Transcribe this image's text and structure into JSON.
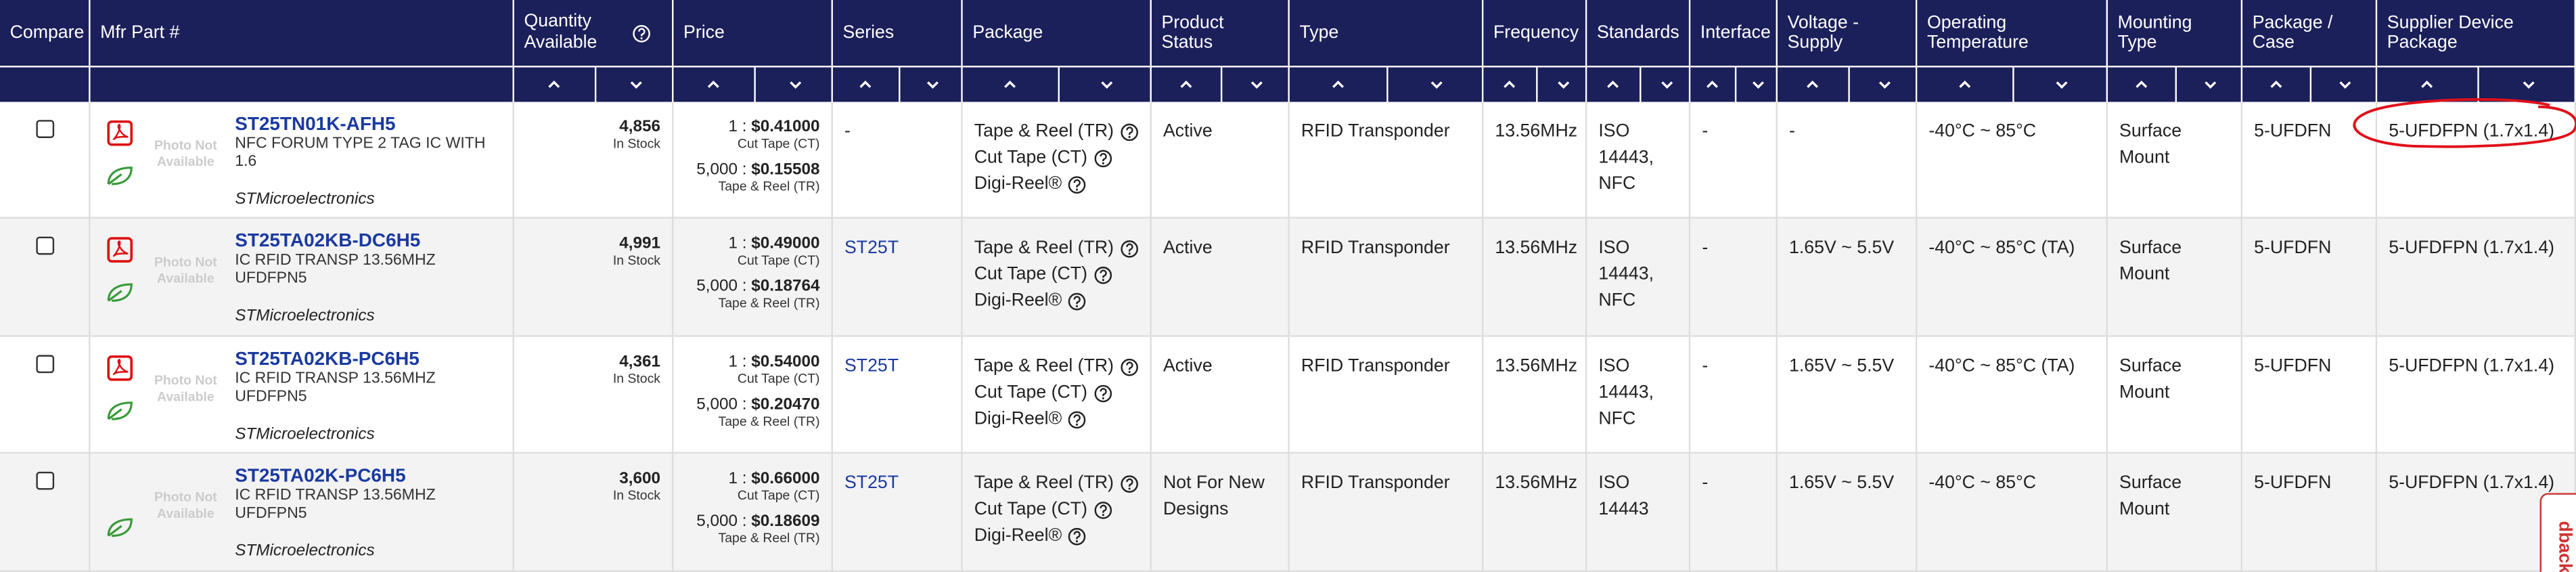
{
  "header": {
    "columns": [
      "Compare",
      "Mfr Part #",
      "Quantity Available",
      "Price",
      "Series",
      "Package",
      "Product Status",
      "Type",
      "Frequency",
      "Standards",
      "Interface",
      "Voltage - Supply",
      "Operating Temperature",
      "Mounting Type",
      "Package / Case",
      "Supplier Device Package"
    ]
  },
  "rows": [
    {
      "datasheet": true,
      "photo": "Photo Not Available",
      "part": "ST25TN01K-AFH5",
      "description": "NFC FORUM TYPE 2 TAG IC WITH 1.6",
      "manufacturer": "STMicroelectronics",
      "quantity": "4,856",
      "stock": "In Stock",
      "prices": [
        {
          "break": "1 :",
          "price": "$0.41000",
          "pack": "Cut Tape (CT)"
        },
        {
          "break": "5,000 :",
          "price": "$0.15508",
          "pack": "Tape & Reel (TR)"
        }
      ],
      "series": "-",
      "package": [
        "Tape & Reel (TR)",
        "Cut Tape (CT)",
        "Digi-Reel®"
      ],
      "status": "Active",
      "type": "RFID Transponder",
      "frequency": "13.56MHz",
      "standards": "ISO 14443, NFC",
      "interface": "-",
      "voltage": "-",
      "temperature": "-40°C ~ 85°C",
      "mounting": "Surface Mount",
      "case": "5-UFDFN",
      "supplier_package": "5-UFDFPN (1.7x1.4)"
    },
    {
      "datasheet": true,
      "photo": "Photo Not Available",
      "part": "ST25TA02KB-DC6H5",
      "description": "IC RFID TRANSP 13.56MHZ UFDFPN5",
      "manufacturer": "STMicroelectronics",
      "quantity": "4,991",
      "stock": "In Stock",
      "prices": [
        {
          "break": "1 :",
          "price": "$0.49000",
          "pack": "Cut Tape (CT)"
        },
        {
          "break": "5,000 :",
          "price": "$0.18764",
          "pack": "Tape & Reel (TR)"
        }
      ],
      "series": "ST25T",
      "package": [
        "Tape & Reel (TR)",
        "Cut Tape (CT)",
        "Digi-Reel®"
      ],
      "status": "Active",
      "type": "RFID Transponder",
      "frequency": "13.56MHz",
      "standards": "ISO 14443, NFC",
      "interface": "-",
      "voltage": "1.65V ~ 5.5V",
      "temperature": "-40°C ~ 85°C (TA)",
      "mounting": "Surface Mount",
      "case": "5-UFDFN",
      "supplier_package": "5-UFDFPN (1.7x1.4)"
    },
    {
      "datasheet": true,
      "photo": "Photo Not Available",
      "part": "ST25TA02KB-PC6H5",
      "description": "IC RFID TRANSP 13.56MHZ UFDFPN5",
      "manufacturer": "STMicroelectronics",
      "quantity": "4,361",
      "stock": "In Stock",
      "prices": [
        {
          "break": "1 :",
          "price": "$0.54000",
          "pack": "Cut Tape (CT)"
        },
        {
          "break": "5,000 :",
          "price": "$0.20470",
          "pack": "Tape & Reel (TR)"
        }
      ],
      "series": "ST25T",
      "package": [
        "Tape & Reel (TR)",
        "Cut Tape (CT)",
        "Digi-Reel®"
      ],
      "status": "Active",
      "type": "RFID Transponder",
      "frequency": "13.56MHz",
      "standards": "ISO 14443, NFC",
      "interface": "-",
      "voltage": "1.65V ~ 5.5V",
      "temperature": "-40°C ~ 85°C (TA)",
      "mounting": "Surface Mount",
      "case": "5-UFDFN",
      "supplier_package": "5-UFDFPN (1.7x1.4)"
    },
    {
      "datasheet": false,
      "photo": "Photo Not Available",
      "part": "ST25TA02K-PC6H5",
      "description": "IC RFID TRANSP 13.56MHZ UFDFPN5",
      "manufacturer": "STMicroelectronics",
      "quantity": "3,600",
      "stock": "In Stock",
      "prices": [
        {
          "break": "1 :",
          "price": "$0.66000",
          "pack": "Cut Tape (CT)"
        },
        {
          "break": "5,000 :",
          "price": "$0.18609",
          "pack": "Tape & Reel (TR)"
        }
      ],
      "series": "ST25T",
      "package": [
        "Tape & Reel (TR)",
        "Cut Tape (CT)",
        "Digi-Reel®"
      ],
      "status": "Not For New Designs",
      "type": "RFID Transponder",
      "frequency": "13.56MHz",
      "standards": "ISO 14443",
      "interface": "-",
      "voltage": "1.65V ~ 5.5V",
      "temperature": "-40°C ~ 85°C",
      "mounting": "Surface Mount",
      "case": "5-UFDFN",
      "supplier_package": "5-UFDFPN (1.7x1.4)"
    }
  ],
  "feedback_tab": "dback"
}
